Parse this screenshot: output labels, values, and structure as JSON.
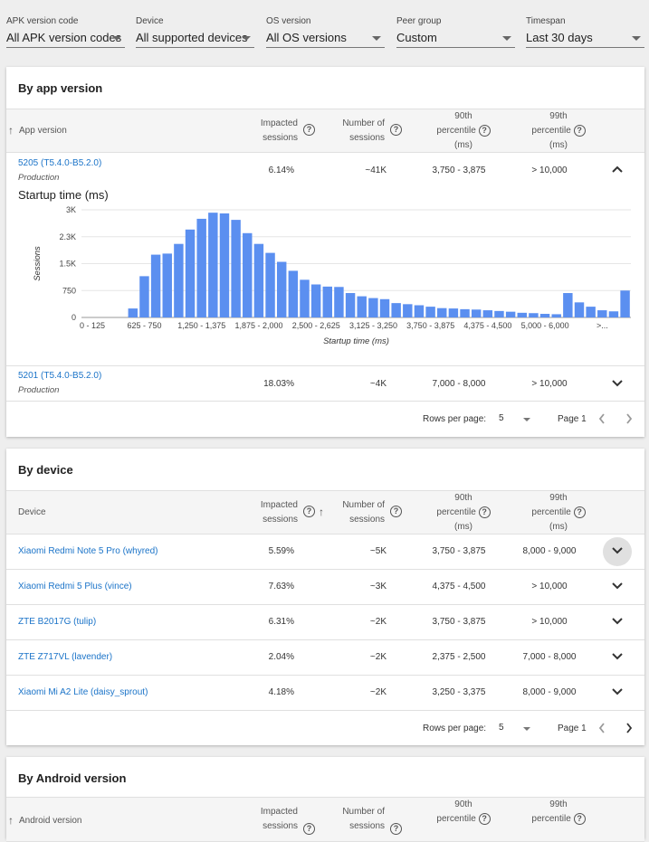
{
  "filters": [
    {
      "label": "APK version code",
      "value": "All APK version codes"
    },
    {
      "label": "Device",
      "value": "All supported devices"
    },
    {
      "label": "OS version",
      "value": "All OS versions"
    },
    {
      "label": "Peer group",
      "value": "Custom"
    },
    {
      "label": "Timespan",
      "value": "Last 30 days"
    }
  ],
  "app_version": {
    "title": "By app version",
    "columns": {
      "name": "App version",
      "impacted": [
        "Impacted",
        "sessions"
      ],
      "number": [
        "Number of",
        "sessions"
      ],
      "p90": [
        "90th",
        "percentile",
        "(ms)"
      ],
      "p99": [
        "99th",
        "percentile",
        "(ms)"
      ]
    },
    "rows": [
      {
        "name": "5205 (T5.4.0-B5.2.0)",
        "sub": "Production",
        "impacted": "6.14%",
        "number": "~41K",
        "p90": "3,750 - 3,875",
        "p99": "> 10,000"
      },
      {
        "name": "5201 (T5.4.0-B5.2.0)",
        "sub": "Production",
        "impacted": "18.03%",
        "number": "~4K",
        "p90": "7,000 - 8,000",
        "p99": "> 10,000"
      }
    ],
    "pager": {
      "rows_per_page_label": "Rows per page:",
      "rows_per_page": "5",
      "page": "Page 1"
    }
  },
  "chart_data": {
    "type": "bar",
    "title": "Startup time (ms)",
    "xlabel": "Startup time (ms)",
    "ylabel": "Sessions",
    "ylim": [
      0,
      3000
    ],
    "yticks": [
      "0",
      "750",
      "1.5K",
      "2.3K",
      "3K"
    ],
    "ytick_values": [
      0,
      750,
      1500,
      2250,
      3000
    ],
    "xtick_labels": [
      "0 - 125",
      "625 - 750",
      "1,250 - 1,375",
      "1,875 - 2,000",
      "2,500 - 2,625",
      "3,125 - 3,250",
      "3,750 - 3,875",
      "4,375 - 4,500",
      "5,000 - 6,000",
      ">..."
    ],
    "xtick_indices": [
      0,
      5,
      10,
      15,
      20,
      25,
      30,
      35,
      40,
      45
    ],
    "bar_color": "#5b8ff0",
    "values": [
      0,
      0,
      0,
      0,
      250,
      1150,
      1750,
      1780,
      2050,
      2450,
      2750,
      2920,
      2900,
      2720,
      2350,
      2050,
      1800,
      1550,
      1300,
      1050,
      920,
      860,
      850,
      680,
      590,
      540,
      510,
      400,
      370,
      340,
      300,
      260,
      250,
      230,
      220,
      200,
      180,
      160,
      130,
      120,
      100,
      90,
      680,
      420,
      300,
      200,
      170,
      750
    ]
  },
  "device": {
    "title": "By device",
    "columns": {
      "name": "Device",
      "impacted": [
        "Impacted",
        "sessions"
      ],
      "number": [
        "Number of",
        "sessions"
      ],
      "p90": [
        "90th",
        "percentile",
        "(ms)"
      ],
      "p99": [
        "99th",
        "percentile",
        "(ms)"
      ]
    },
    "rows": [
      {
        "name": "Xiaomi Redmi Note 5 Pro (whyred)",
        "impacted": "5.59%",
        "number": "~5K",
        "p90": "3,750 - 3,875",
        "p99": "8,000 - 9,000"
      },
      {
        "name": "Xiaomi Redmi 5 Plus (vince)",
        "impacted": "7.63%",
        "number": "~3K",
        "p90": "4,375 - 4,500",
        "p99": "> 10,000"
      },
      {
        "name": "ZTE B2017G (tulip)",
        "impacted": "6.31%",
        "number": "~2K",
        "p90": "3,750 - 3,875",
        "p99": "> 10,000"
      },
      {
        "name": "ZTE Z717VL (lavender)",
        "impacted": "2.04%",
        "number": "~2K",
        "p90": "2,375 - 2,500",
        "p99": "7,000 - 8,000"
      },
      {
        "name": "Xiaomi Mi A2 Lite (daisy_sprout)",
        "impacted": "4.18%",
        "number": "~2K",
        "p90": "3,250 - 3,375",
        "p99": "8,000 - 9,000"
      }
    ],
    "pager": {
      "rows_per_page_label": "Rows per page:",
      "rows_per_page": "5",
      "page": "Page 1"
    }
  },
  "android_version": {
    "title": "By Android version",
    "columns": {
      "name": "Android version",
      "impacted": [
        "Impacted",
        "sessions"
      ],
      "number": [
        "Number of",
        "sessions"
      ],
      "p90": [
        "90th",
        "percentile"
      ],
      "p99": [
        "99th",
        "percentile"
      ]
    }
  },
  "colors": {
    "link": "#1a73c8",
    "bar": "#5b8ff0",
    "header_bg": "#f5f5f5",
    "page_bg": "#eeeeee"
  }
}
